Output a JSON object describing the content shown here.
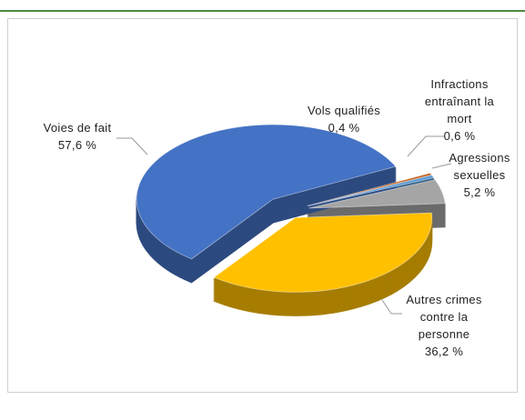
{
  "chart_data": {
    "type": "pie",
    "categories": [
      "Vols qualifiés",
      "Infractions entraînant la mort",
      "Agressions sexuelles",
      "Autres crimes contre la personne",
      "Voies de fait"
    ],
    "values": [
      0.4,
      0.6,
      5.2,
      36.2,
      57.6
    ],
    "value_labels": [
      "0,4 %",
      "0,6 %",
      "5,2 %",
      "36,2 %",
      "57,6 %"
    ],
    "colors": [
      "#c55a11",
      "#5b9bd5",
      "#a5a5a5",
      "#ffc000",
      "#4472c4"
    ]
  }
}
